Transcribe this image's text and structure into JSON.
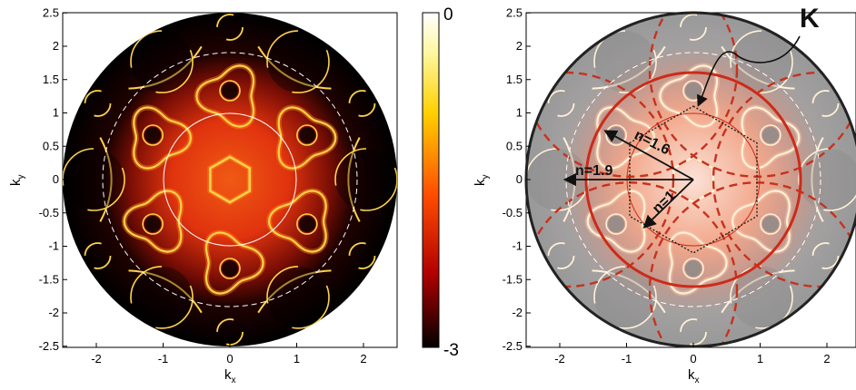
{
  "chart_data": [
    {
      "type": "heatmap",
      "panel": "left",
      "xlabel": "k",
      "xlabel_sub": "x",
      "ylabel": "k",
      "ylabel_sub": "y",
      "xlim": [
        -2.5,
        2.5
      ],
      "ylim": [
        -2.5,
        2.5
      ],
      "xticks": [
        -2,
        -1,
        0,
        1,
        2
      ],
      "xtick_labels": [
        "-2",
        "-1",
        "0",
        "1",
        "2"
      ],
      "yticks": [
        2.5,
        2,
        1.5,
        1,
        0.5,
        0,
        -0.5,
        -1,
        -1.5,
        -2,
        -2.5
      ],
      "ytick_labels": [
        "2.5",
        "2",
        "1.5",
        "1",
        "0.5",
        "0",
        "-0.5",
        "-1",
        "-1.5",
        "-2",
        "-2.5"
      ],
      "circles": [
        {
          "radius": 1.0,
          "style": "solid",
          "color": "#ffffff"
        },
        {
          "radius": 1.9,
          "style": "dashed",
          "color": "#ffffff"
        }
      ],
      "colorbar": {
        "min": -3,
        "max": 0,
        "labels": [
          "0",
          "-3"
        ]
      },
      "colors": {
        "outside": "#000000",
        "glow_center": "#e8400e",
        "glow_edge": "#000000",
        "line": "#ffd24a"
      }
    },
    {
      "type": "heatmap",
      "panel": "right",
      "xlabel": "k",
      "xlabel_sub": "x",
      "ylabel": "k",
      "ylabel_sub": "y",
      "xlim": [
        -2.5,
        2.5
      ],
      "ylim": [
        -2.5,
        2.5
      ],
      "xticks": [
        -2,
        -1,
        0,
        1,
        2
      ],
      "xtick_labels": [
        "-2",
        "-1",
        "0",
        "1",
        "2"
      ],
      "yticks": [
        2.5,
        2,
        1.5,
        1,
        0.5,
        0,
        -0.5,
        -1,
        -1.5,
        -2,
        -2.5
      ],
      "ytick_labels": [
        "2.5",
        "2",
        "1.5",
        "1",
        "0.5",
        "0",
        "-0.5",
        "-1",
        "-1.5",
        "-2",
        "-2.5"
      ],
      "circles": [
        {
          "radius": 1.0,
          "style": "solid-thin",
          "color": "#cc2b1a"
        },
        {
          "radius": 1.6,
          "style": "solid",
          "color": "#cc2b1a"
        },
        {
          "radius": 1.9,
          "style": "dashed",
          "color": "#ffffff"
        },
        {
          "radius": 2.5,
          "style": "solid",
          "color": "#222222"
        }
      ],
      "hexagon": {
        "vertex_radius": 1.1,
        "style": "dotted",
        "color": "#222222"
      },
      "arrows": [
        {
          "label": "n=1",
          "dx": -0.72,
          "dy": -0.7
        },
        {
          "label": "n=1.6",
          "dx": -1.3,
          "dy": 0.72
        },
        {
          "label": "n=1.9",
          "dx": -1.9,
          "dy": 0
        }
      ],
      "annotation": {
        "label": "K",
        "target_x": 0,
        "target_y": 1.1
      },
      "colors": {
        "background": "#999999",
        "glow_center": "#f4b8a0",
        "lines": "#c7311f"
      }
    }
  ],
  "annotation_labels": {
    "n1": "n=1",
    "n16": "n=1.6",
    "n19": "n=1.9",
    "K": "K"
  }
}
